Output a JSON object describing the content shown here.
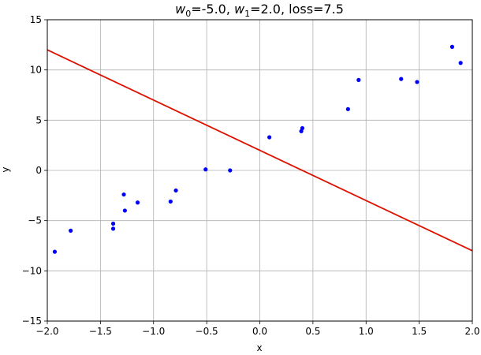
{
  "chart_data": {
    "type": "scatter",
    "title_parts": {
      "w0_sym": "w",
      "w0_sub": "0",
      "w0_val": "=-5.0, ",
      "w1_sym": "w",
      "w1_sub": "1",
      "w1_val": "=2.0, loss=7.5"
    },
    "xlabel": "x",
    "ylabel": "y",
    "xlim": [
      -2.0,
      2.0
    ],
    "ylim": [
      -15,
      15
    ],
    "grid": true,
    "x_ticks": [
      {
        "value": -2.0,
        "label": "−2.0"
      },
      {
        "value": -1.5,
        "label": "−1.5"
      },
      {
        "value": -1.0,
        "label": "−1.0"
      },
      {
        "value": -0.5,
        "label": "−0.5"
      },
      {
        "value": 0.0,
        "label": "0.0"
      },
      {
        "value": 0.5,
        "label": "0.5"
      },
      {
        "value": 1.0,
        "label": "1.0"
      },
      {
        "value": 1.5,
        "label": "1.5"
      },
      {
        "value": 2.0,
        "label": "2.0"
      }
    ],
    "y_ticks": [
      {
        "value": -15,
        "label": "−15"
      },
      {
        "value": -10,
        "label": "−10"
      },
      {
        "value": -5,
        "label": "−5"
      },
      {
        "value": 0,
        "label": "0"
      },
      {
        "value": 5,
        "label": "5"
      },
      {
        "value": 10,
        "label": "10"
      },
      {
        "value": 15,
        "label": "15"
      }
    ],
    "scatter_color": "#0000ff",
    "points": [
      {
        "x": -1.93,
        "y": -8.1
      },
      {
        "x": -1.78,
        "y": -6.0
      },
      {
        "x": -1.38,
        "y": -5.3
      },
      {
        "x": -1.38,
        "y": -5.8
      },
      {
        "x": -1.28,
        "y": -2.4
      },
      {
        "x": -1.27,
        "y": -4.0
      },
      {
        "x": -1.15,
        "y": -3.2
      },
      {
        "x": -0.84,
        "y": -3.1
      },
      {
        "x": -0.79,
        "y": -2.0
      },
      {
        "x": -0.51,
        "y": 0.1
      },
      {
        "x": -0.28,
        "y": 0.0
      },
      {
        "x": 0.09,
        "y": 3.3
      },
      {
        "x": 0.39,
        "y": 3.9
      },
      {
        "x": 0.4,
        "y": 4.2
      },
      {
        "x": 0.83,
        "y": 6.1
      },
      {
        "x": 0.93,
        "y": 9.0
      },
      {
        "x": 1.33,
        "y": 9.1
      },
      {
        "x": 1.48,
        "y": 8.8
      },
      {
        "x": 1.81,
        "y": 12.3
      },
      {
        "x": 1.89,
        "y": 10.7
      }
    ],
    "line_color": "#dd1100",
    "line": {
      "x": [
        -2.0,
        2.0
      ],
      "y": [
        12.0,
        -8.0
      ]
    }
  }
}
